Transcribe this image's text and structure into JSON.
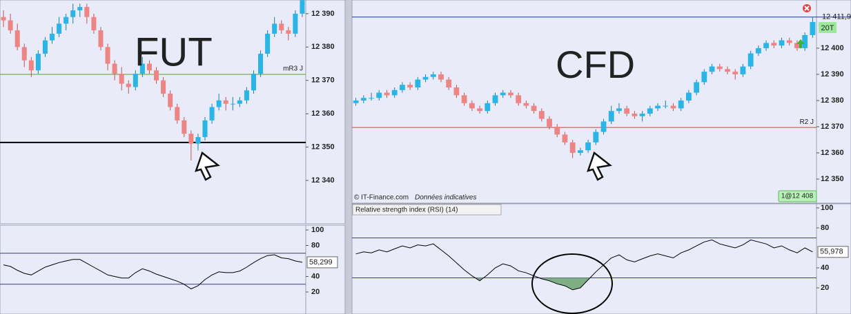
{
  "chart_data": [
    {
      "type": "candlestick",
      "title": "FUT",
      "up_color": "#2bb5e6",
      "down_color": "#ee8585",
      "ylim": [
        12327,
        12394.1
      ],
      "yticks": [
        {
          "value": 12340,
          "label": "12 340"
        },
        {
          "value": 12350,
          "label": "12 350"
        },
        {
          "value": 12360,
          "label": "12 360"
        },
        {
          "value": 12370,
          "label": "12 370"
        },
        {
          "value": 12380,
          "label": "12 380"
        },
        {
          "value": 12390,
          "label": "12 390"
        }
      ],
      "lines": [
        {
          "value": 12371.8,
          "color": "#5a9e2f",
          "label": "mR3 J"
        },
        {
          "value": 12351.4,
          "color": "#000000"
        }
      ],
      "ohlc": [
        [
          12389,
          12391,
          12386,
          12388
        ],
        [
          12388,
          12390,
          12384,
          12385
        ],
        [
          12385,
          12387,
          12379,
          12380
        ],
        [
          12380,
          12381,
          12374,
          12376
        ],
        [
          12376,
          12377,
          12371,
          12373
        ],
        [
          12373,
          12379,
          12372,
          12378
        ],
        [
          12378,
          12383,
          12377,
          12382
        ],
        [
          12382,
          12386,
          12381,
          12384
        ],
        [
          12384,
          12389,
          12383,
          12387
        ],
        [
          12387,
          12390,
          12385,
          12389
        ],
        [
          12389,
          12393,
          12387,
          12391
        ],
        [
          12391,
          12393,
          12389,
          12392
        ],
        [
          12392,
          12393,
          12387,
          12389
        ],
        [
          12389,
          12390,
          12384,
          12385
        ],
        [
          12385,
          12386,
          12379,
          12380
        ],
        [
          12380,
          12381,
          12373,
          12375
        ],
        [
          12375,
          12376,
          12370,
          12372
        ],
        [
          12372,
          12374,
          12367,
          12369
        ],
        [
          12369,
          12370,
          12366,
          12368
        ],
        [
          12368,
          12373,
          12367,
          12372
        ],
        [
          12372,
          12377,
          12371,
          12375
        ],
        [
          12375,
          12376,
          12372,
          12373
        ],
        [
          12373,
          12374,
          12369,
          12370
        ],
        [
          12370,
          12371,
          12365,
          12366
        ],
        [
          12366,
          12367,
          12361,
          12362
        ],
        [
          12362,
          12363,
          12357,
          12358
        ],
        [
          12358,
          12359,
          12353,
          12354
        ],
        [
          12354,
          12355,
          12346,
          12351
        ],
        [
          12351,
          12354,
          12349,
          12353
        ],
        [
          12353,
          12359,
          12352,
          12358
        ],
        [
          12358,
          12363,
          12357,
          12362
        ],
        [
          12362,
          12366,
          12361,
          12364
        ],
        [
          12364,
          12365,
          12361,
          12363
        ],
        [
          12363,
          12365,
          12361,
          12363
        ],
        [
          12363,
          12365,
          12362,
          12364
        ],
        [
          12364,
          12368,
          12363,
          12367
        ],
        [
          12367,
          12373,
          12366,
          12372
        ],
        [
          12372,
          12379,
          12371,
          12378
        ],
        [
          12378,
          12385,
          12377,
          12384
        ],
        [
          12384,
          12389,
          12383,
          12387
        ],
        [
          12387,
          12388,
          12384,
          12385
        ],
        [
          12385,
          12386,
          12382,
          12384
        ],
        [
          12384,
          12391,
          12383,
          12390
        ],
        [
          12390,
          12396,
          12389,
          12394
        ]
      ]
    },
    {
      "type": "line",
      "color": "#000000",
      "ylim": [
        -8.4,
        106.2
      ],
      "yticks": [
        20,
        40,
        80,
        100
      ],
      "lines": [
        {
          "value": 70,
          "color": "#3a3a8c"
        },
        {
          "value": 30,
          "color": "#3a3a8c"
        }
      ],
      "last_value": {
        "value": 58.299,
        "label": "58,299"
      },
      "values": [
        55,
        53,
        48,
        44,
        42,
        47,
        52,
        55,
        58,
        60,
        62,
        62,
        57,
        52,
        47,
        42,
        40,
        38,
        38,
        45,
        50,
        47,
        43,
        40,
        37,
        34,
        30,
        24,
        28,
        36,
        42,
        46,
        45,
        45,
        47,
        52,
        58,
        63,
        67,
        68,
        64,
        63,
        60,
        58.299
      ]
    },
    {
      "type": "candlestick",
      "title": "CFD",
      "up_color": "#2bb5e6",
      "down_color": "#ee8585",
      "ylim": [
        12340.8,
        12418.4
      ],
      "yticks": [
        {
          "value": 12350,
          "label": "12 350"
        },
        {
          "value": 12360,
          "label": "12 360"
        },
        {
          "value": 12370,
          "label": "12 370"
        },
        {
          "value": 12380,
          "label": "12 380"
        },
        {
          "value": 12390,
          "label": "12 390"
        },
        {
          "value": 12400,
          "label": "12 400"
        }
      ],
      "lines": [
        {
          "value": 12411.9,
          "color": "#1f3a78",
          "axis_label": "12 411,9"
        },
        {
          "value": 12369.7,
          "color": "#d63a3a",
          "label": "R2 J"
        }
      ],
      "tag": "20T",
      "order_label": "1@12 408",
      "source": "© IT-Finance.com",
      "note": "Données indicatives",
      "ohlc": [
        [
          12379,
          12381,
          12378,
          12380
        ],
        [
          12380,
          12382,
          12379,
          12381
        ],
        [
          12381,
          12383,
          12380,
          12381
        ],
        [
          12381,
          12384,
          12380,
          12383
        ],
        [
          12383,
          12384,
          12381,
          12382
        ],
        [
          12382,
          12385,
          12381,
          12384
        ],
        [
          12384,
          12387,
          12383,
          12386
        ],
        [
          12386,
          12387,
          12384,
          12385
        ],
        [
          12385,
          12389,
          12384,
          12388
        ],
        [
          12388,
          12390,
          12387,
          12389
        ],
        [
          12389,
          12391,
          12388,
          12390
        ],
        [
          12390,
          12391,
          12387,
          12388
        ],
        [
          12388,
          12389,
          12384,
          12385
        ],
        [
          12385,
          12386,
          12381,
          12382
        ],
        [
          12382,
          12383,
          12378,
          12379
        ],
        [
          12379,
          12380,
          12376,
          12377
        ],
        [
          12377,
          12378,
          12375,
          12376
        ],
        [
          12376,
          12380,
          12375,
          12379
        ],
        [
          12379,
          12383,
          12378,
          12382
        ],
        [
          12382,
          12384,
          12381,
          12383
        ],
        [
          12383,
          12384,
          12381,
          12382
        ],
        [
          12382,
          12383,
          12378,
          12379
        ],
        [
          12379,
          12380,
          12377,
          12378
        ],
        [
          12378,
          12379,
          12375,
          12376
        ],
        [
          12376,
          12377,
          12372,
          12373
        ],
        [
          12373,
          12374,
          12369,
          12370
        ],
        [
          12370,
          12371,
          12366,
          12367
        ],
        [
          12367,
          12368,
          12363,
          12364
        ],
        [
          12364,
          12365,
          12358,
          12360
        ],
        [
          12360,
          12362,
          12359,
          12361
        ],
        [
          12361,
          12365,
          12360,
          12364
        ],
        [
          12364,
          12369,
          12363,
          12368
        ],
        [
          12368,
          12373,
          12367,
          12372
        ],
        [
          12372,
          12378,
          12371,
          12376
        ],
        [
          12376,
          12379,
          12375,
          12377
        ],
        [
          12377,
          12378,
          12374,
          12375
        ],
        [
          12375,
          12376,
          12373,
          12374
        ],
        [
          12374,
          12376,
          12372,
          12375
        ],
        [
          12375,
          12378,
          12374,
          12377
        ],
        [
          12377,
          12379,
          12376,
          12378
        ],
        [
          12378,
          12380,
          12377,
          12378
        ],
        [
          12378,
          12379,
          12376,
          12377
        ],
        [
          12377,
          12381,
          12376,
          12380
        ],
        [
          12380,
          12384,
          12379,
          12383
        ],
        [
          12383,
          12388,
          12382,
          12387
        ],
        [
          12387,
          12392,
          12386,
          12391
        ],
        [
          12391,
          12394,
          12390,
          12393
        ],
        [
          12393,
          12394,
          12391,
          12392
        ],
        [
          12392,
          12393,
          12390,
          12391
        ],
        [
          12391,
          12392,
          12388,
          12390
        ],
        [
          12390,
          12394,
          12389,
          12393
        ],
        [
          12393,
          12399,
          12392,
          12398
        ],
        [
          12398,
          12401,
          12397,
          12400
        ],
        [
          12400,
          12403,
          12399,
          12402
        ],
        [
          12402,
          12403,
          12400,
          12401
        ],
        [
          12401,
          12404,
          12400,
          12403
        ],
        [
          12403,
          12404,
          12401,
          12402
        ],
        [
          12402,
          12403,
          12399,
          12400
        ],
        [
          12400,
          12406,
          12399,
          12405
        ],
        [
          12405,
          12412,
          12404,
          12410
        ]
      ]
    },
    {
      "type": "line",
      "title": "Relative strength index (RSI) (14)",
      "color": "#000000",
      "oversold_fill": "#7fae84",
      "ylim": [
        -6.2,
        104.1
      ],
      "yticks": [
        20,
        40,
        80,
        100
      ],
      "lines": [
        {
          "value": 70,
          "color": "#3a3a8c"
        },
        {
          "value": 30,
          "color": "#3a3a8c"
        }
      ],
      "last_value": {
        "value": 55.978,
        "label": "55,978"
      },
      "values": [
        54,
        56,
        55,
        58,
        56,
        59,
        62,
        60,
        63,
        62,
        64,
        58,
        52,
        45,
        38,
        32,
        27,
        33,
        40,
        44,
        42,
        37,
        35,
        32,
        29,
        27,
        24,
        22,
        18,
        20,
        28,
        36,
        43,
        50,
        53,
        48,
        46,
        49,
        52,
        54,
        52,
        50,
        55,
        58,
        62,
        66,
        68,
        64,
        62,
        60,
        63,
        68,
        66,
        64,
        60,
        62,
        58,
        55,
        60,
        55.978
      ]
    }
  ]
}
